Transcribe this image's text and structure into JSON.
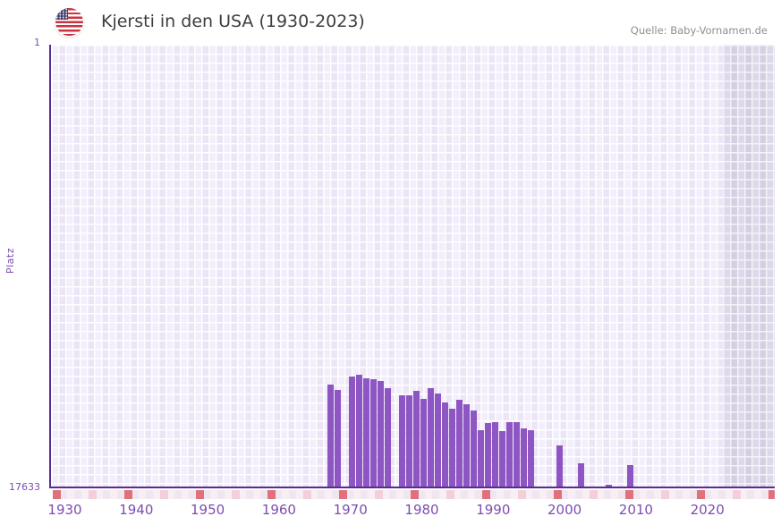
{
  "page": {
    "title": "Kjersti in den USA (1930-2023)",
    "source": "Quelle: Baby-Vornamen.de",
    "flag_icon": "us-flag"
  },
  "chart_data": {
    "type": "bar",
    "title": "Kjersti in den USA (1930-2023)",
    "ylabel": "Platz",
    "xlabel": "",
    "legend_position": "none",
    "grid": true,
    "y_axis": {
      "min": 1,
      "max": 17633,
      "inverted": true,
      "top_tick_label": "1",
      "bottom_tick_label": "17633"
    },
    "x_axis": {
      "range_start": 1928,
      "range_end": 2030,
      "tick_years": [
        1930,
        1940,
        1950,
        1960,
        1970,
        1980,
        1990,
        2000,
        2010,
        2020
      ]
    },
    "future_shaded_from_year": 2022,
    "series": [
      {
        "name": "Platz",
        "points": [
          {
            "year": 1967,
            "rank": 13537
          },
          {
            "year": 1968,
            "rank": 13750
          },
          {
            "year": 1970,
            "rank": 13216
          },
          {
            "year": 1971,
            "rank": 13144
          },
          {
            "year": 1972,
            "rank": 13287
          },
          {
            "year": 1973,
            "rank": 13323
          },
          {
            "year": 1974,
            "rank": 13394
          },
          {
            "year": 1975,
            "rank": 13679
          },
          {
            "year": 1977,
            "rank": 13964
          },
          {
            "year": 1978,
            "rank": 13964
          },
          {
            "year": 1979,
            "rank": 13786
          },
          {
            "year": 1980,
            "rank": 14107
          },
          {
            "year": 1981,
            "rank": 13679
          },
          {
            "year": 1982,
            "rank": 13893
          },
          {
            "year": 1983,
            "rank": 14249
          },
          {
            "year": 1984,
            "rank": 14498
          },
          {
            "year": 1985,
            "rank": 14142
          },
          {
            "year": 1986,
            "rank": 14320
          },
          {
            "year": 1987,
            "rank": 14570
          },
          {
            "year": 1988,
            "rank": 15353
          },
          {
            "year": 1989,
            "rank": 15068
          },
          {
            "year": 1990,
            "rank": 15032
          },
          {
            "year": 1991,
            "rank": 15388
          },
          {
            "year": 1992,
            "rank": 15032
          },
          {
            "year": 1993,
            "rank": 15032
          },
          {
            "year": 1994,
            "rank": 15281
          },
          {
            "year": 1995,
            "rank": 15353
          },
          {
            "year": 1999,
            "rank": 15958
          },
          {
            "year": 2002,
            "rank": 16670
          },
          {
            "year": 2006,
            "rank": 17525
          },
          {
            "year": 2009,
            "rank": 16741
          }
        ]
      }
    ],
    "colors": {
      "bar": "#8d56c3",
      "axis_line": "#5a2c90",
      "tick_label": "#7c4db0",
      "grid_cell_light": "#f3eefb",
      "grid_cell_dark": "#ebe5f6",
      "future_cell_light": "#ded8eb",
      "future_cell_dark": "#d6cfe2",
      "strip_base_light": "#f8eff5",
      "strip_base_dark": "#f0e6f0",
      "strip_marker_strong": "#e0717c",
      "strip_marker_soft": "#f3cedb",
      "title_text": "#3d3d3d",
      "source_text": "#8f8f8f"
    }
  }
}
